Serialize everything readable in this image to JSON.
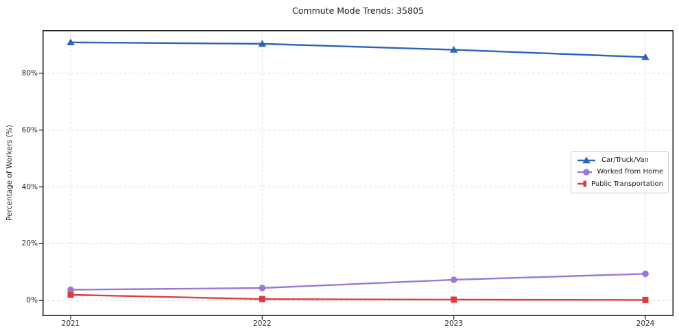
{
  "chart_data": {
    "type": "line",
    "title": "Commute Mode Trends: 35805",
    "xlabel": "",
    "ylabel": "Percentage of Workers (%)",
    "categories": [
      "2021",
      "2022",
      "2023",
      "2024"
    ],
    "series": [
      {
        "name": "Car/Truck/Van",
        "marker": "triangle",
        "color": "#2b62bd",
        "values": [
          90.9,
          90.4,
          88.3,
          85.7
        ]
      },
      {
        "name": "Worked from Home",
        "marker": "circle",
        "color": "#9b78d7",
        "values": [
          3.8,
          4.4,
          7.3,
          9.4
        ]
      },
      {
        "name": "Public Transportation",
        "marker": "square",
        "color": "#e03b3b",
        "values": [
          2.0,
          0.5,
          0.3,
          0.2
        ]
      }
    ],
    "yticks": [
      0,
      20,
      40,
      60,
      80
    ],
    "ytick_labels": [
      "0%",
      "20%",
      "40%",
      "60%",
      "80%"
    ],
    "ylim": [
      -5.5,
      95.2
    ],
    "grid": true,
    "grid_style": "dashed",
    "legend_position": "center right",
    "colors": {
      "spine": "#1d1d1d",
      "grid": "#dcdcdc",
      "text": "#262626"
    }
  }
}
